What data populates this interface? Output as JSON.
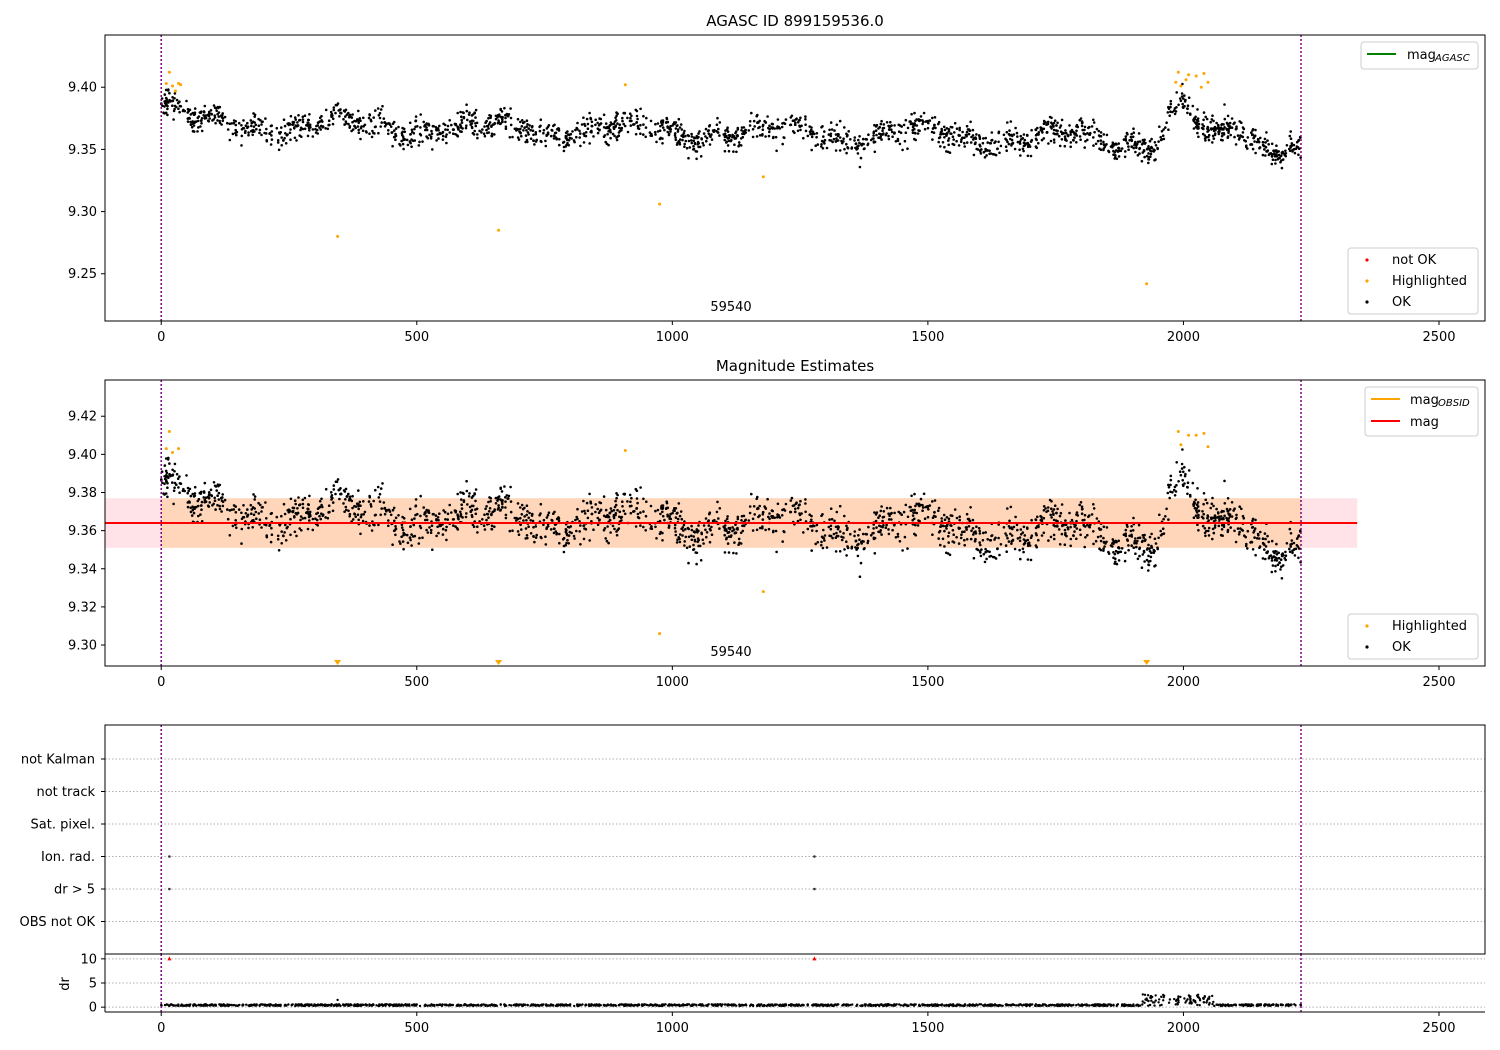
{
  "figure": {
    "top_title": "AGASC ID 899159536.0",
    "middle_title": "Magnitude Estimates"
  },
  "chart_data": [
    {
      "type": "scatter",
      "title": "AGASC ID 899159536.0",
      "xlim": [
        -110,
        2590
      ],
      "ylim": [
        9.212,
        9.442
      ],
      "x_ticks": [
        0,
        500,
        1000,
        1500,
        2000,
        2500
      ],
      "y_ticks": [
        9.25,
        9.3,
        9.35,
        9.4
      ],
      "y_tick_labels": [
        "9.25",
        "9.30",
        "9.35",
        "9.40"
      ],
      "vlines": [
        0,
        2230
      ],
      "annotation": {
        "text": "59540",
        "x": 1110,
        "y": 9.219
      },
      "line_legend": [
        {
          "label": "mag",
          "subscript": "AGASC",
          "color": "#008000"
        }
      ],
      "point_legend": [
        {
          "label": "not OK",
          "color": "#ff0000"
        },
        {
          "label": "Highlighted",
          "color": "#ffa500"
        },
        {
          "label": "OK",
          "color": "#000000"
        }
      ],
      "highlighted_points": [
        [
          16,
          9.412
        ],
        [
          22,
          9.401
        ],
        [
          28,
          9.397
        ],
        [
          34,
          9.403
        ],
        [
          38,
          9.402
        ],
        [
          10,
          9.403
        ],
        [
          345,
          9.28
        ],
        [
          660,
          9.285
        ],
        [
          908,
          9.402
        ],
        [
          975,
          9.306
        ],
        [
          1178,
          9.328
        ],
        [
          1928,
          9.242
        ],
        [
          1985,
          9.404
        ],
        [
          1990,
          9.412
        ],
        [
          1995,
          9.401
        ],
        [
          2005,
          9.406
        ],
        [
          2010,
          9.41
        ],
        [
          2025,
          9.409
        ],
        [
          2035,
          9.4
        ],
        [
          2040,
          9.411
        ],
        [
          2048,
          9.404
        ]
      ]
    },
    {
      "type": "scatter",
      "title": "Magnitude Estimates",
      "xlim": [
        -110,
        2590
      ],
      "ylim": [
        9.289,
        9.439
      ],
      "x_ticks": [
        0,
        500,
        1000,
        1500,
        2000,
        2500
      ],
      "y_ticks": [
        9.3,
        9.32,
        9.34,
        9.36,
        9.38,
        9.4,
        9.42
      ],
      "y_tick_labels": [
        "9.30",
        "9.32",
        "9.34",
        "9.36",
        "9.38",
        "9.40",
        "9.42"
      ],
      "vlines": [
        0,
        2230
      ],
      "annotation": {
        "text": "59540",
        "x": 1110,
        "y": 9.293
      },
      "mag_line": {
        "value": 9.364,
        "x_from": -110,
        "x_to": 2340,
        "color": "#ff0000"
      },
      "mag_band": {
        "low": 9.351,
        "high": 9.377,
        "x_from": -110,
        "x_to": 2340,
        "color": "#ffc0cb"
      },
      "mag_obsid_band": {
        "low": 9.351,
        "high": 9.377,
        "x_from": 0,
        "x_to": 2230,
        "color": "#ffa500"
      },
      "offscale_markers_x": [
        345,
        660,
        1928
      ],
      "line_legend": [
        {
          "label": "mag",
          "subscript": "OBSID",
          "color": "#ffa500"
        },
        {
          "label": "mag",
          "subscript": "",
          "color": "#ff0000"
        }
      ],
      "point_legend": [
        {
          "label": "Highlighted",
          "color": "#ffa500"
        },
        {
          "label": "OK",
          "color": "#000000"
        }
      ],
      "highlighted_points": [
        [
          16,
          9.412
        ],
        [
          10,
          9.403
        ],
        [
          22,
          9.401
        ],
        [
          34,
          9.403
        ],
        [
          908,
          9.402
        ],
        [
          975,
          9.306
        ],
        [
          1178,
          9.328
        ],
        [
          1990,
          9.412
        ],
        [
          1995,
          9.405
        ],
        [
          2010,
          9.41
        ],
        [
          2025,
          9.41
        ],
        [
          2040,
          9.411
        ],
        [
          2048,
          9.404
        ]
      ]
    },
    {
      "type": "scatter",
      "title": "",
      "xlim": [
        -110,
        2590
      ],
      "flag_labels": [
        "not Kalman",
        "not track",
        "Sat. pixel.",
        "Ion. rad.",
        "dr > 5",
        "OBS not OK"
      ],
      "flag_points": [
        {
          "flag": "Ion. rad.",
          "x": [
            16,
            1278
          ]
        },
        {
          "flag": "dr > 5",
          "x": [
            16,
            1278
          ]
        }
      ],
      "vlines": [
        0,
        2230
      ]
    },
    {
      "type": "scatter",
      "title": "",
      "xlim": [
        -110,
        2590
      ],
      "ylim": [
        -1,
        11
      ],
      "ylabel": "dr",
      "x_ticks": [
        0,
        500,
        1000,
        1500,
        2000,
        2500
      ],
      "y_ticks": [
        0,
        5,
        10
      ],
      "y_tick_labels": [
        "0",
        "5",
        "10"
      ],
      "red_markers": [
        [
          16,
          10
        ],
        [
          1278,
          10
        ]
      ],
      "vlines": [
        0,
        2230
      ]
    }
  ]
}
